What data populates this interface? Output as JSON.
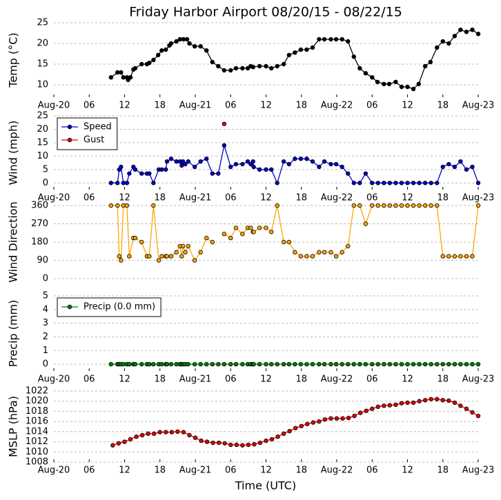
{
  "chart_data": [
    {
      "type": "line",
      "title": "Friday Harbor Airport 08/20/15 - 08/22/15",
      "ylabel": "Temp (°C)",
      "xlim": [
        0,
        72
      ],
      "xticks": [
        {
          "value": 0,
          "label": "Aug-20"
        },
        {
          "value": 6,
          "label": "06"
        },
        {
          "value": 12,
          "label": "12"
        },
        {
          "value": 18,
          "label": "18"
        },
        {
          "value": 24,
          "label": "Aug-21"
        },
        {
          "value": 30,
          "label": "06"
        },
        {
          "value": 36,
          "label": "12"
        },
        {
          "value": 42,
          "label": "18"
        },
        {
          "value": 48,
          "label": "Aug-22"
        },
        {
          "value": 54,
          "label": "06"
        },
        {
          "value": 60,
          "label": "12"
        },
        {
          "value": 66,
          "label": "18"
        },
        {
          "value": 72,
          "label": "Aug-23"
        }
      ],
      "ylim": [
        7,
        25
      ],
      "yticks": [
        10,
        15,
        20,
        25
      ],
      "grid": true,
      "series": [
        {
          "color": "#000000",
          "x": [
            9.7,
            10.8,
            11.4,
            11.8,
            12.4,
            12.6,
            13,
            13.5,
            13.8,
            14.9,
            15.8,
            16.2,
            16.9,
            17.7,
            18.3,
            19,
            19.6,
            19.9,
            20.8,
            21.4,
            22,
            22.6,
            23,
            23.9,
            24.9,
            25.9,
            26.9,
            27.9,
            28.9,
            30,
            30.9,
            32,
            32.9,
            33.4,
            33.8,
            34.9,
            36,
            36.9,
            37.9,
            39,
            39.9,
            40.9,
            41.9,
            42.9,
            43.9,
            45,
            45.9,
            47,
            47.9,
            48.9,
            49.9,
            50.9,
            51.9,
            52.9,
            54,
            54.9,
            56,
            56.9,
            58,
            59,
            60,
            61,
            61.9,
            63,
            63.9,
            65,
            66,
            67,
            68,
            69,
            70,
            71,
            72
          ],
          "values": [
            11.8,
            13,
            13,
            11.8,
            11.8,
            11.2,
            11.8,
            13.7,
            14,
            15,
            15,
            15.3,
            16,
            17.2,
            18.3,
            18.5,
            19.5,
            20,
            20.5,
            21,
            21,
            21,
            20,
            19.3,
            19.3,
            18.3,
            15.5,
            14.5,
            13.5,
            13.5,
            14,
            14,
            14,
            14.5,
            14.3,
            14.5,
            14.5,
            14,
            14.5,
            15,
            17.2,
            17.8,
            18.5,
            18.5,
            19,
            21,
            21,
            21,
            21,
            21,
            20.5,
            16.8,
            14,
            12.8,
            11.8,
            10.7,
            10.2,
            10.2,
            10.7,
            9.5,
            9.5,
            9,
            10.2,
            14.5,
            15.5,
            19,
            20.5,
            20,
            21.8,
            23.3,
            22.8,
            23.3,
            22.3
          ]
        }
      ]
    },
    {
      "type": "line",
      "ylabel": "Wind (mph)",
      "xlim": [
        0,
        72
      ],
      "xticks": [
        {
          "value": 0,
          "label": "Aug-20"
        },
        {
          "value": 6,
          "label": "06"
        },
        {
          "value": 12,
          "label": "12"
        },
        {
          "value": 18,
          "label": "18"
        },
        {
          "value": 24,
          "label": "Aug-21"
        },
        {
          "value": 30,
          "label": "06"
        },
        {
          "value": 36,
          "label": "12"
        },
        {
          "value": 42,
          "label": "18"
        },
        {
          "value": 48,
          "label": "Aug-22"
        },
        {
          "value": 54,
          "label": "06"
        },
        {
          "value": 60,
          "label": "12"
        },
        {
          "value": 66,
          "label": "18"
        },
        {
          "value": 72,
          "label": "Aug-23"
        }
      ],
      "ylim": [
        -2.5,
        25
      ],
      "yticks": [
        0,
        5,
        10,
        15,
        20,
        25
      ],
      "grid": true,
      "legend": "upper left",
      "series": [
        {
          "name": "Speed",
          "color": "#0000cc",
          "x": [
            9.7,
            10.8,
            11.1,
            11.4,
            11.8,
            12.4,
            12.8,
            13.5,
            13.8,
            14.9,
            15.8,
            16.2,
            16.9,
            17.8,
            18.3,
            19,
            19.2,
            19.9,
            20.8,
            21.4,
            21.7,
            21.9,
            22.3,
            22.8,
            23.9,
            24.9,
            25.9,
            26.9,
            27.9,
            28.9,
            30,
            30.9,
            32,
            32.9,
            33.4,
            33.8,
            33.9,
            34.9,
            36,
            36.9,
            37.9,
            39,
            39.9,
            40.9,
            41.9,
            42.9,
            43.9,
            45,
            45.9,
            47,
            47.9,
            48.9,
            49.9,
            50.9,
            51.9,
            52.9,
            54,
            55,
            56,
            57,
            58,
            59,
            60,
            61,
            62,
            63,
            64,
            65,
            66,
            67,
            68,
            69,
            70,
            71,
            72
          ],
          "values": [
            0,
            0,
            5,
            6,
            0,
            0,
            3.5,
            6,
            5,
            3.5,
            3.5,
            3.5,
            0,
            5,
            5,
            5,
            8,
            9,
            8,
            8,
            6.5,
            8,
            7,
            8,
            6,
            8,
            9,
            3.5,
            3.5,
            14,
            6,
            7,
            7,
            8,
            7,
            8,
            6,
            5,
            5,
            5,
            0,
            8,
            7,
            9,
            9,
            9,
            8,
            6,
            8,
            7,
            7,
            6,
            3.5,
            0,
            0,
            3.5,
            0,
            0,
            0,
            0,
            0,
            0,
            0,
            0,
            0,
            0,
            0,
            0,
            6,
            7,
            6,
            8,
            5,
            6,
            0
          ]
        },
        {
          "name": "Gust",
          "color": "#dd0000",
          "x": [
            28.9
          ],
          "values": [
            22
          ]
        }
      ]
    },
    {
      "type": "line",
      "ylabel": "Wind Direction",
      "xlim": [
        0,
        72
      ],
      "ylim": [
        0,
        360
      ],
      "yticks": [
        0,
        90,
        180,
        270,
        360
      ],
      "grid": true,
      "series": [
        {
          "color": "#ffa500",
          "x": [
            9.7,
            10.8,
            11.1,
            11.4,
            11.8,
            12.4,
            12.8,
            13.5,
            13.8,
            14.9,
            15.8,
            16.2,
            16.9,
            17.8,
            18.3,
            19,
            19.2,
            19.9,
            20.8,
            21.4,
            21.7,
            21.9,
            22.3,
            22.8,
            23.9,
            24.9,
            25.9,
            26.9,
            27.9,
            28.9,
            30,
            30.9,
            32,
            32.9,
            33.4,
            33.8,
            33.9,
            34.9,
            36,
            36.9,
            37.9,
            39,
            39.9,
            40.9,
            41.9,
            42.9,
            43.9,
            45,
            45.9,
            47,
            47.9,
            48.9,
            49.9,
            50.9,
            51.9,
            52.9,
            54,
            55,
            56,
            57,
            58,
            59,
            60,
            61,
            62,
            63,
            64,
            65,
            66,
            67,
            68,
            69,
            70,
            71,
            72
          ],
          "values": [
            360,
            360,
            110,
            90,
            360,
            360,
            110,
            200,
            200,
            180,
            110,
            110,
            360,
            90,
            110,
            110,
            110,
            110,
            130,
            160,
            110,
            160,
            130,
            160,
            90,
            130,
            200,
            180,
            null,
            220,
            200,
            250,
            220,
            250,
            250,
            230,
            230,
            250,
            250,
            230,
            360,
            180,
            180,
            130,
            110,
            110,
            110,
            130,
            130,
            130,
            110,
            130,
            160,
            360,
            360,
            270,
            360,
            360,
            360,
            360,
            360,
            360,
            360,
            360,
            360,
            360,
            360,
            360,
            110,
            110,
            110,
            110,
            110,
            110,
            360
          ]
        }
      ]
    },
    {
      "type": "line",
      "ylabel": "Precip (mm)",
      "xlim": [
        0,
        72
      ],
      "xticks": [
        {
          "value": 0,
          "label": "Aug-20"
        },
        {
          "value": 6,
          "label": "06"
        },
        {
          "value": 12,
          "label": "12"
        },
        {
          "value": 18,
          "label": "18"
        },
        {
          "value": 24,
          "label": "Aug-21"
        },
        {
          "value": 30,
          "label": "06"
        },
        {
          "value": 36,
          "label": "12"
        },
        {
          "value": 42,
          "label": "18"
        },
        {
          "value": 48,
          "label": "Aug-22"
        },
        {
          "value": 54,
          "label": "06"
        },
        {
          "value": 60,
          "label": "12"
        },
        {
          "value": 66,
          "label": "18"
        },
        {
          "value": 72,
          "label": "Aug-23"
        }
      ],
      "ylim": [
        -0.5,
        5
      ],
      "yticks": [
        0,
        1,
        2,
        3,
        4,
        5
      ],
      "grid": true,
      "legend": "upper left",
      "series": [
        {
          "name": "Precip (0.0 mm)",
          "color": "#008000",
          "x": [
            9.7,
            10.8,
            11.1,
            11.4,
            11.8,
            12.4,
            12.8,
            13.5,
            13.8,
            14.9,
            15.8,
            16.2,
            16.9,
            17.8,
            18.3,
            19,
            19.2,
            19.9,
            20.8,
            21.4,
            21.7,
            21.9,
            22.3,
            22.8,
            23.9,
            24.9,
            25.9,
            26.9,
            27.9,
            28.9,
            30,
            30.9,
            32,
            32.9,
            33.4,
            33.8,
            33.9,
            34.9,
            36,
            36.9,
            37.9,
            39,
            39.9,
            40.9,
            41.9,
            42.9,
            43.9,
            45,
            45.9,
            47,
            47.9,
            48.9,
            49.9,
            50.9,
            51.9,
            52.9,
            54,
            55,
            56,
            57,
            58,
            59,
            60,
            61,
            62,
            63,
            64,
            65,
            66,
            67,
            68,
            69,
            70,
            71,
            72
          ],
          "values": [
            0,
            0,
            0,
            0,
            0,
            0,
            0,
            0,
            0,
            0,
            0,
            0,
            0,
            0,
            0,
            0,
            0,
            0,
            0,
            0,
            0,
            0,
            0,
            0,
            0,
            0,
            0,
            0,
            0,
            0,
            0,
            0,
            0,
            0,
            0,
            0,
            0,
            0,
            0,
            0,
            0,
            0,
            0,
            0,
            0,
            0,
            0,
            0,
            0,
            0,
            0,
            0,
            0,
            0,
            0,
            0,
            0,
            0,
            0,
            0,
            0,
            0,
            0,
            0,
            0,
            0,
            0,
            0,
            0,
            0,
            0,
            0,
            0,
            0,
            0
          ]
        }
      ]
    },
    {
      "type": "line",
      "ylabel": "MSLP (hPa)",
      "xlabel": "Time (UTC)",
      "xlim": [
        0,
        72
      ],
      "xticks": [
        {
          "value": 0,
          "label": "Aug-20"
        },
        {
          "value": 6,
          "label": "06"
        },
        {
          "value": 12,
          "label": "12"
        },
        {
          "value": 18,
          "label": "18"
        },
        {
          "value": 24,
          "label": "Aug-21"
        },
        {
          "value": 30,
          "label": "06"
        },
        {
          "value": 36,
          "label": "12"
        },
        {
          "value": 42,
          "label": "18"
        },
        {
          "value": 48,
          "label": "Aug-22"
        },
        {
          "value": 54,
          "label": "06"
        },
        {
          "value": 60,
          "label": "12"
        },
        {
          "value": 66,
          "label": "18"
        },
        {
          "value": 72,
          "label": "Aug-23"
        }
      ],
      "ylim": [
        1008,
        1022
      ],
      "yticks": [
        1008,
        1010,
        1012,
        1014,
        1016,
        1018,
        1020,
        1022
      ],
      "grid": true,
      "series": [
        {
          "color": "#dd0000",
          "x": [
            10,
            11,
            12,
            13,
            14,
            15,
            16,
            17,
            18,
            19,
            20,
            21,
            22,
            23,
            24,
            25,
            26,
            27,
            28,
            29,
            30,
            31,
            32,
            33,
            34,
            35,
            36,
            37,
            38,
            39,
            40,
            41,
            42,
            43,
            44,
            45,
            46,
            47,
            48,
            49,
            50,
            51,
            52,
            53,
            54,
            55,
            56,
            57,
            58,
            59,
            60,
            61,
            62,
            63,
            64,
            65,
            66,
            67,
            68,
            69,
            70,
            71,
            72
          ],
          "values": [
            1011.3,
            1011.7,
            1012,
            1012.5,
            1013,
            1013.3,
            1013.6,
            1013.6,
            1013.9,
            1013.9,
            1013.9,
            1014,
            1013.9,
            1013.3,
            1012.8,
            1012.2,
            1012,
            1011.8,
            1011.8,
            1011.7,
            1011.4,
            1011.4,
            1011.3,
            1011.4,
            1011.5,
            1011.8,
            1012.2,
            1012.5,
            1013,
            1013.6,
            1014.1,
            1014.7,
            1015.1,
            1015.5,
            1015.8,
            1016,
            1016.4,
            1016.6,
            1016.6,
            1016.6,
            1016.7,
            1017.1,
            1017.7,
            1018.1,
            1018.5,
            1018.9,
            1019.1,
            1019.2,
            1019.3,
            1019.6,
            1019.7,
            1019.7,
            1020,
            1020.2,
            1020.4,
            1020.4,
            1020.2,
            1020.1,
            1019.7,
            1019.1,
            1018.5,
            1017.8,
            1017.1
          ]
        }
      ]
    }
  ]
}
